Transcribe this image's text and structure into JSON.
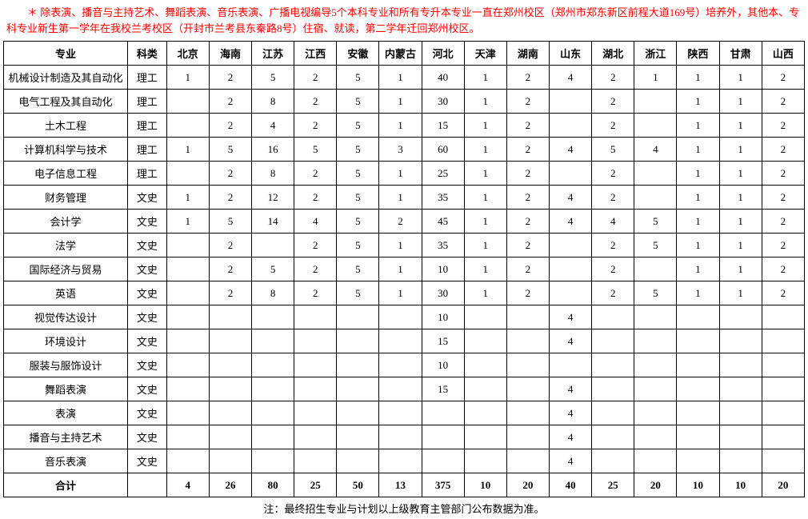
{
  "notice": "　　＊ 除表演、播音与主持艺术、舞蹈表演、音乐表演、广播电视编导5个本科专业和所有专升本专业一直在郑州校区（郑州市郑东新区前程大道169号）培养外，其他本、专科专业新生第一学年在我校兰考校区（开封市兰考县东秦路8号）住宿、就读，第二学年迁回郑州校区。",
  "footnote": "注：最终招生专业与计划以上级教育主管部门公布数据为准。",
  "columns": [
    "专业",
    "科类",
    "北京",
    "海南",
    "江苏",
    "江西",
    "安徽",
    "内蒙古",
    "河北",
    "天津",
    "湖南",
    "山东",
    "湖北",
    "浙江",
    "陕西",
    "甘肃",
    "山西"
  ],
  "rows": [
    [
      "机械设计制造及其自动化",
      "理工",
      "1",
      "2",
      "5",
      "2",
      "5",
      "1",
      "40",
      "1",
      "2",
      "4",
      "2",
      "1",
      "1",
      "1",
      "2"
    ],
    [
      "电气工程及其自动化",
      "理工",
      "",
      "2",
      "8",
      "2",
      "5",
      "1",
      "30",
      "1",
      "2",
      "",
      "2",
      "",
      "1",
      "1",
      "2"
    ],
    [
      "土木工程",
      "理工",
      "",
      "2",
      "4",
      "2",
      "5",
      "1",
      "15",
      "1",
      "2",
      "",
      "2",
      "",
      "1",
      "1",
      "2"
    ],
    [
      "计算机科学与技术",
      "理工",
      "1",
      "5",
      "16",
      "5",
      "5",
      "3",
      "60",
      "1",
      "2",
      "4",
      "5",
      "4",
      "1",
      "1",
      "2"
    ],
    [
      "电子信息工程",
      "理工",
      "",
      "2",
      "8",
      "2",
      "5",
      "1",
      "25",
      "1",
      "2",
      "",
      "2",
      "",
      "1",
      "1",
      "2"
    ],
    [
      "财务管理",
      "文史",
      "1",
      "2",
      "12",
      "2",
      "5",
      "1",
      "35",
      "1",
      "2",
      "4",
      "2",
      "",
      "1",
      "1",
      "2"
    ],
    [
      "会计学",
      "文史",
      "1",
      "5",
      "14",
      "4",
      "5",
      "2",
      "45",
      "1",
      "2",
      "4",
      "4",
      "5",
      "1",
      "1",
      "2"
    ],
    [
      "法学",
      "文史",
      "",
      "2",
      "",
      "2",
      "5",
      "1",
      "35",
      "1",
      "2",
      "",
      "2",
      "5",
      "1",
      "1",
      "2"
    ],
    [
      "国际经济与贸易",
      "文史",
      "",
      "2",
      "5",
      "2",
      "5",
      "1",
      "10",
      "1",
      "2",
      "",
      "2",
      "",
      "1",
      "1",
      "2"
    ],
    [
      "英语",
      "文史",
      "",
      "2",
      "8",
      "2",
      "5",
      "1",
      "30",
      "1",
      "2",
      "",
      "2",
      "5",
      "1",
      "1",
      "2"
    ],
    [
      "视觉传达设计",
      "文史",
      "",
      "",
      "",
      "",
      "",
      "",
      "10",
      "",
      "",
      "4",
      "",
      "",
      "",
      "",
      ""
    ],
    [
      "环境设计",
      "文史",
      "",
      "",
      "",
      "",
      "",
      "",
      "15",
      "",
      "",
      "4",
      "",
      "",
      "",
      "",
      ""
    ],
    [
      "服装与服饰设计",
      "文史",
      "",
      "",
      "",
      "",
      "",
      "",
      "10",
      "",
      "",
      "",
      "",
      "",
      "",
      "",
      ""
    ],
    [
      "舞蹈表演",
      "文史",
      "",
      "",
      "",
      "",
      "",
      "",
      "15",
      "",
      "",
      "4",
      "",
      "",
      "",
      "",
      ""
    ],
    [
      "表演",
      "文史",
      "",
      "",
      "",
      "",
      "",
      "",
      "",
      "",
      "",
      "4",
      "",
      "",
      "",
      "",
      ""
    ],
    [
      "播音与主持艺术",
      "文史",
      "",
      "",
      "",
      "",
      "",
      "",
      "",
      "",
      "",
      "4",
      "",
      "",
      "",
      "",
      ""
    ],
    [
      "音乐表演",
      "文史",
      "",
      "",
      "",
      "",
      "",
      "",
      "",
      "",
      "",
      "4",
      "",
      "",
      "",
      "",
      ""
    ]
  ],
  "totals": [
    "合计",
    "",
    "4",
    "26",
    "80",
    "25",
    "50",
    "13",
    "375",
    "10",
    "20",
    "40",
    "25",
    "20",
    "10",
    "10",
    "20"
  ]
}
